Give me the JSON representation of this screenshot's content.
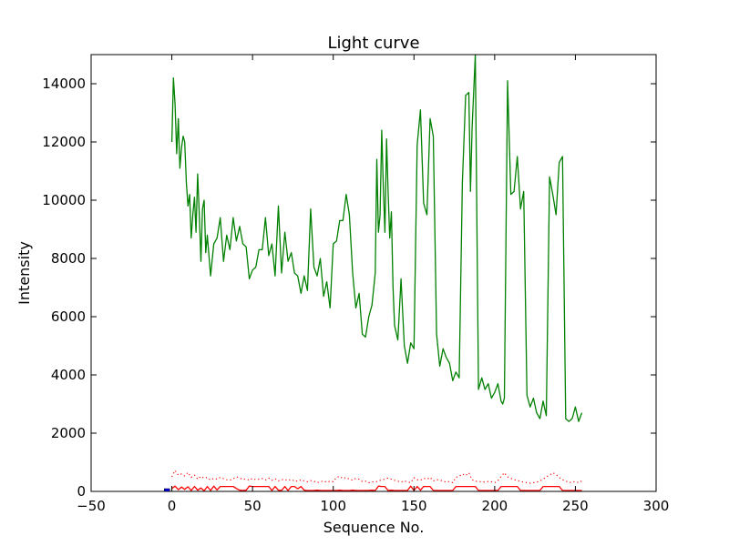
{
  "chart_data": {
    "type": "line",
    "title": "Light curve",
    "xlabel": "Sequence No.",
    "ylabel": "Intensity",
    "xlim": [
      -50,
      300
    ],
    "ylim": [
      0,
      15000
    ],
    "xticks": [
      -50,
      0,
      50,
      100,
      150,
      200,
      250,
      300
    ],
    "yticks": [
      0,
      2000,
      4000,
      6000,
      8000,
      10000,
      12000,
      14000
    ],
    "grid": false,
    "series": [
      {
        "style": "solid",
        "color": "#008000",
        "x": [
          0,
          1,
          2,
          3,
          4,
          5,
          6,
          7,
          8,
          9,
          10,
          11,
          12,
          13,
          14,
          15,
          16,
          17,
          18,
          19,
          20,
          21,
          22,
          24,
          26,
          28,
          30,
          32,
          34,
          36,
          38,
          40,
          42,
          44,
          46,
          48,
          50,
          52,
          54,
          56,
          58,
          60,
          62,
          64,
          66,
          68,
          70,
          72,
          74,
          76,
          78,
          80,
          82,
          84,
          86,
          88,
          90,
          92,
          94,
          96,
          98,
          100,
          102,
          104,
          106,
          108,
          110,
          112,
          114,
          116,
          118,
          120,
          122,
          124,
          126,
          127,
          128,
          129,
          130,
          131,
          132,
          133,
          134,
          135,
          136,
          137,
          138,
          140,
          142,
          144,
          146,
          148,
          150,
          152,
          154,
          156,
          158,
          160,
          162,
          164,
          166,
          168,
          170,
          172,
          174,
          176,
          178,
          180,
          182,
          184,
          185,
          186,
          188,
          190,
          192,
          194,
          196,
          198,
          200,
          202,
          204,
          205,
          206,
          208,
          210,
          212,
          214,
          216,
          218,
          220,
          222,
          224,
          226,
          228,
          230,
          232,
          234,
          236,
          238,
          240,
          242,
          244,
          246,
          248,
          250,
          252,
          254
        ],
        "y": [
          12000,
          14200,
          13300,
          11600,
          12800,
          11100,
          11800,
          12200,
          12000,
          10600,
          9800,
          10200,
          8700,
          9500,
          10100,
          8900,
          10900,
          9500,
          7900,
          9700,
          10000,
          8200,
          8800,
          7400,
          8500,
          8700,
          9400,
          7900,
          8800,
          8300,
          9400,
          8600,
          9100,
          8500,
          8400,
          7300,
          7600,
          7700,
          8300,
          8300,
          9400,
          8100,
          8500,
          7400,
          9800,
          7500,
          8900,
          7900,
          8200,
          7500,
          7400,
          6800,
          7400,
          6900,
          9700,
          7700,
          7400,
          8000,
          6700,
          7200,
          6300,
          8500,
          8600,
          9300,
          9300,
          10200,
          9500,
          7500,
          6300,
          6800,
          5400,
          5300,
          6000,
          6400,
          7500,
          11400,
          8900,
          9500,
          12400,
          10500,
          8900,
          12100,
          10300,
          8700,
          9600,
          7000,
          5700,
          5200,
          7300,
          5000,
          4400,
          5100,
          4900,
          11900,
          13100,
          9900,
          9500,
          12800,
          12200,
          5400,
          4300,
          4900,
          4600,
          4400,
          3800,
          4100,
          3900,
          10600,
          13600,
          13700,
          10300,
          12500,
          15000,
          3500,
          3900,
          3500,
          3700,
          3200,
          3400,
          3700,
          3100,
          3000,
          3200,
          14100,
          10200,
          10300,
          11500,
          9700,
          10300,
          3300,
          2900,
          3200,
          2700,
          2500,
          3100,
          2600,
          10800,
          10200,
          9500,
          11300,
          11500,
          2500,
          2400,
          2500,
          2900,
          2400,
          2700
        ]
      },
      {
        "style": "solid",
        "color": "#ff0000",
        "x": [
          0,
          2,
          4,
          6,
          8,
          10,
          12,
          14,
          16,
          18,
          20,
          22,
          24,
          26,
          28,
          30,
          32,
          34,
          36,
          38,
          40,
          42,
          44,
          46,
          48,
          50,
          52,
          54,
          56,
          58,
          60,
          62,
          64,
          66,
          68,
          70,
          72,
          74,
          76,
          78,
          80,
          82,
          84,
          86,
          88,
          90,
          92,
          94,
          96,
          98,
          100,
          102,
          104,
          106,
          108,
          110,
          112,
          114,
          116,
          118,
          120,
          122,
          124,
          126,
          128,
          130,
          132,
          134,
          136,
          138,
          140,
          142,
          144,
          146,
          148,
          150,
          152,
          154,
          156,
          158,
          160,
          162,
          164,
          166,
          168,
          170,
          172,
          174,
          176,
          178,
          180,
          182,
          184,
          186,
          188,
          190,
          192,
          194,
          196,
          198,
          200,
          202,
          204,
          206,
          208,
          210,
          212,
          214,
          216,
          218,
          220,
          222,
          224,
          226,
          228,
          230,
          232,
          234,
          236,
          238,
          240,
          242,
          244,
          246,
          248,
          250,
          252,
          254
        ],
        "y": [
          100,
          180,
          60,
          150,
          70,
          160,
          30,
          170,
          40,
          120,
          20,
          170,
          30,
          180,
          50,
          170,
          170,
          170,
          170,
          170,
          100,
          40,
          30,
          40,
          180,
          170,
          170,
          170,
          170,
          170,
          170,
          30,
          170,
          40,
          30,
          170,
          30,
          170,
          170,
          90,
          170,
          40,
          30,
          30,
          30,
          40,
          30,
          30,
          30,
          30,
          30,
          30,
          40,
          30,
          30,
          30,
          40,
          30,
          30,
          30,
          30,
          30,
          40,
          30,
          180,
          170,
          170,
          30,
          40,
          30,
          30,
          30,
          30,
          30,
          180,
          30,
          170,
          40,
          170,
          170,
          170,
          30,
          30,
          30,
          30,
          30,
          30,
          30,
          170,
          170,
          170,
          170,
          170,
          170,
          170,
          30,
          30,
          30,
          30,
          30,
          30,
          30,
          170,
          170,
          170,
          170,
          170,
          170,
          30,
          30,
          30,
          30,
          30,
          30,
          30,
          170,
          170,
          170,
          170,
          170,
          170,
          30,
          30,
          30,
          30,
          30,
          30,
          30
        ]
      },
      {
        "style": "dotted",
        "color": "#ff0000",
        "x": [
          0,
          2,
          4,
          6,
          8,
          10,
          12,
          14,
          16,
          18,
          20,
          22,
          24,
          26,
          28,
          30,
          32,
          34,
          36,
          38,
          40,
          42,
          44,
          46,
          48,
          50,
          52,
          54,
          56,
          58,
          60,
          62,
          64,
          66,
          68,
          70,
          72,
          74,
          76,
          78,
          80,
          82,
          84,
          86,
          88,
          90,
          92,
          94,
          96,
          98,
          100,
          102,
          104,
          106,
          108,
          110,
          112,
          114,
          116,
          118,
          120,
          122,
          124,
          126,
          128,
          130,
          132,
          134,
          136,
          138,
          140,
          142,
          144,
          146,
          148,
          150,
          152,
          154,
          156,
          158,
          160,
          162,
          164,
          166,
          168,
          170,
          172,
          174,
          176,
          178,
          180,
          182,
          184,
          186,
          188,
          190,
          192,
          194,
          196,
          198,
          200,
          202,
          204,
          206,
          208,
          210,
          212,
          214,
          216,
          218,
          220,
          222,
          224,
          226,
          228,
          230,
          232,
          234,
          236,
          238,
          240,
          242,
          244,
          246,
          248,
          250,
          252,
          254
        ],
        "y": [
          500,
          720,
          560,
          600,
          530,
          650,
          480,
          560,
          420,
          520,
          450,
          480,
          390,
          450,
          420,
          480,
          440,
          400,
          380,
          430,
          500,
          460,
          410,
          430,
          380,
          450,
          400,
          420,
          440,
          390,
          460,
          380,
          430,
          360,
          410,
          380,
          420,
          360,
          390,
          340,
          400,
          360,
          330,
          370,
          350,
          300,
          330,
          360,
          310,
          350,
          330,
          480,
          520,
          440,
          480,
          420,
          380,
          450,
          420,
          340,
          350,
          300,
          330,
          320,
          360,
          400,
          420,
          460,
          420,
          380,
          350,
          320,
          360,
          330,
          300,
          470,
          400,
          380,
          450,
          420,
          480,
          360,
          400,
          390,
          350,
          320,
          340,
          300,
          480,
          520,
          600,
          540,
          640,
          400,
          350,
          340,
          330,
          320,
          340,
          330,
          300,
          370,
          510,
          640,
          500,
          450,
          400,
          380,
          340,
          320,
          300,
          280,
          300,
          320,
          360,
          420,
          500,
          560,
          640,
          580,
          480,
          400,
          360,
          300,
          320,
          340,
          300,
          360
        ]
      },
      {
        "style": "marker",
        "color": "#0000ff",
        "x": [
          -3
        ],
        "y": [
          0
        ]
      }
    ]
  }
}
